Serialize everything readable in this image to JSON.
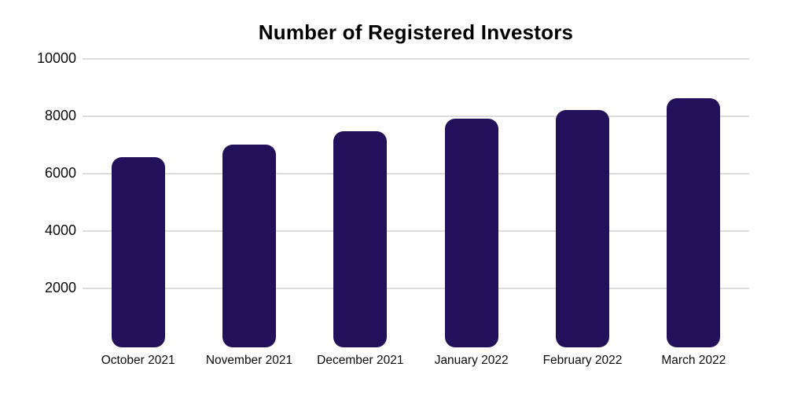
{
  "chart_data": {
    "type": "bar",
    "title": "Number of Registered Investors",
    "categories": [
      "October 2021",
      "November 2021",
      "December 2021",
      "January 2022",
      "February 2022",
      "March 2022"
    ],
    "values": [
      6550,
      7000,
      7450,
      7900,
      8200,
      8600
    ],
    "xlabel": "",
    "ylabel": "",
    "ylim": [
      0,
      10000
    ],
    "yticks": [
      2000,
      4000,
      6000,
      8000,
      10000
    ],
    "grid": true,
    "legend": false,
    "legend_position": "none",
    "bar_color": "#23105a",
    "gridline_color": "#dcdcdf",
    "title_color": "#000000",
    "tick_label_color": "#0a0a0a",
    "background_color": "#ffffff"
  }
}
